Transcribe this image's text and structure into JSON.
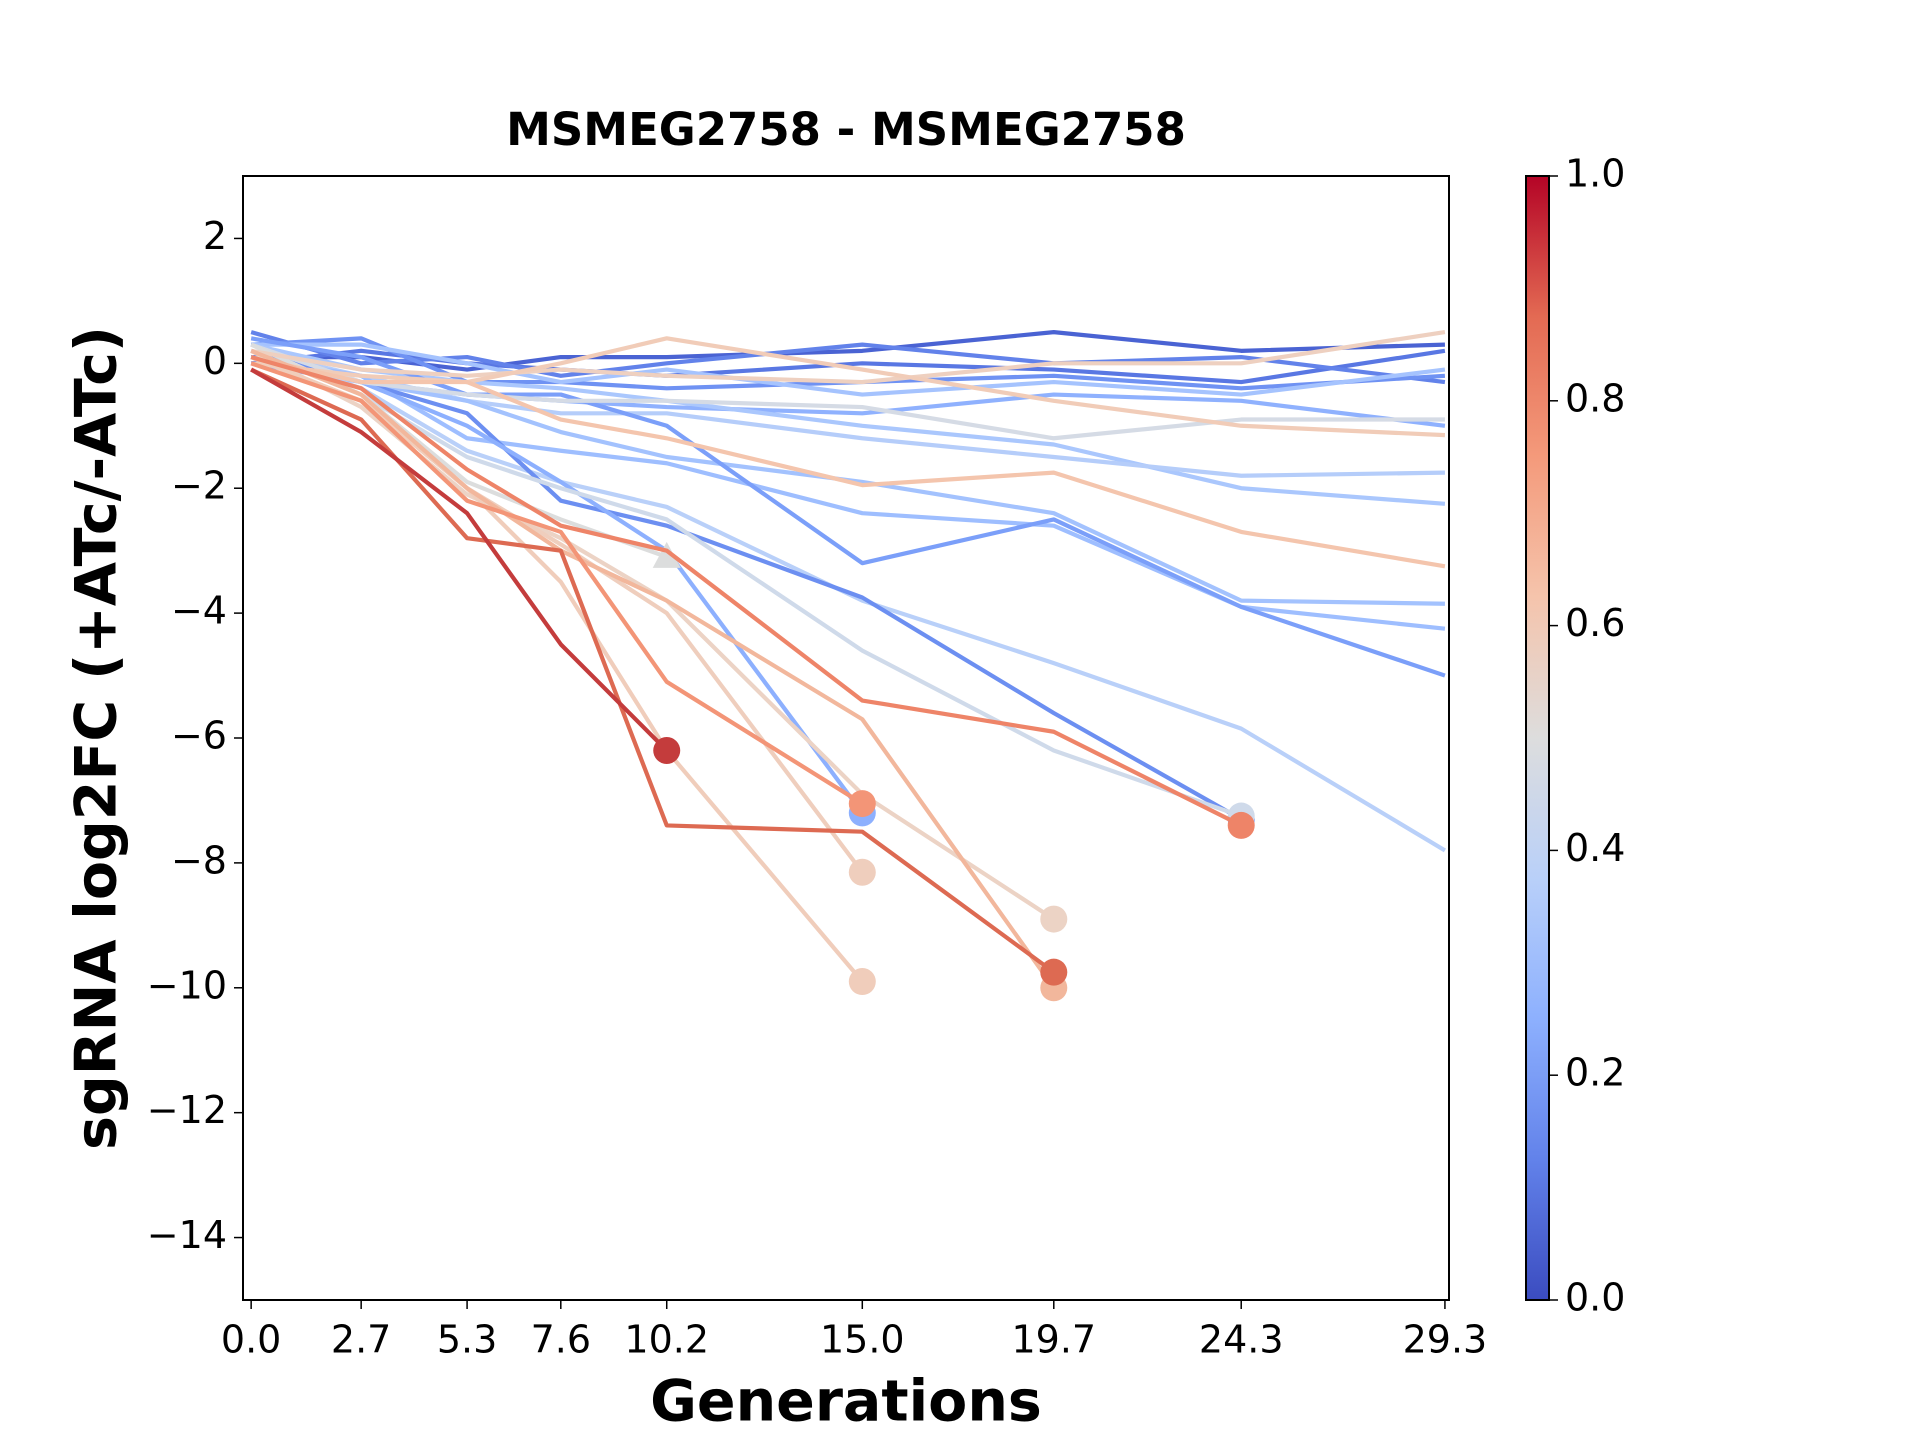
{
  "chart_data": {
    "type": "line",
    "title": "MSMEG2758 - MSMEG2758",
    "x_label": "Generations",
    "y_label": "sgRNA log2FC (+ATc/-ATc)",
    "x": [
      0,
      2.7,
      5.3,
      7.6,
      10.2,
      15,
      19.7,
      24.3,
      29.3
    ],
    "xlim": [
      -0.2,
      29.4
    ],
    "xticks": [
      {
        "value": 0,
        "label": "0.0"
      },
      2.7,
      5.3,
      7.6,
      10.2,
      {
        "value": 15,
        "label": "15.0"
      },
      19.7,
      24.3,
      29.3
    ],
    "ylim": [
      -15,
      3
    ],
    "yticks": [
      2,
      0,
      {
        "value": -2,
        "label": "−2"
      },
      {
        "value": -4,
        "label": "−4"
      },
      {
        "value": -6,
        "label": "−6"
      },
      {
        "value": -8,
        "label": "−8"
      },
      {
        "value": -10,
        "label": "−10"
      },
      {
        "value": -12,
        "label": "−12"
      },
      {
        "value": -14,
        "label": "−14"
      }
    ],
    "colorbar": {
      "cmap": "coolwarm",
      "lim": [
        0,
        1
      ],
      "ticks": [
        {
          "value": 0,
          "label": "0.0"
        },
        0.2,
        0.4,
        0.6,
        0.8,
        {
          "value": 1,
          "label": "1.0"
        }
      ]
    },
    "series": [
      {
        "color": "#4a63d3",
        "values": [
          0.1,
          0.1,
          -0.1,
          0.1,
          0.1,
          0.2,
          0.5,
          0.2,
          0.3
        ]
      },
      {
        "color": "#5977e3",
        "values": [
          0.0,
          0.2,
          0.0,
          -0.1,
          -0.2,
          0.0,
          -0.1,
          -0.3,
          0.2
        ]
      },
      {
        "color": "#6282ea",
        "values": [
          0.5,
          0.0,
          0.1,
          -0.2,
          0.0,
          0.3,
          0.0,
          0.1,
          -0.3
        ]
      },
      {
        "color": "#6f92f3",
        "values": [
          0.3,
          0.4,
          -0.3,
          -0.3,
          -0.4,
          -0.3,
          -0.2,
          -0.4,
          -0.2
        ]
      },
      {
        "color": "#a5c3fe",
        "values": [
          0.3,
          0.3,
          0.0,
          -0.3,
          -0.1,
          -0.5,
          -0.3,
          -0.5,
          -0.1
        ]
      },
      {
        "color": "#8fb1fe",
        "values": [
          0.0,
          -0.3,
          -0.5,
          -0.6,
          -0.7,
          -0.8,
          -0.5,
          -0.6,
          -1.0
        ]
      },
      {
        "color": "#aac7fd",
        "values": [
          0.3,
          -0.1,
          -0.3,
          -0.4,
          -0.6,
          -1.0,
          -1.3,
          -2.0,
          -2.25
        ]
      },
      {
        "color": "#b5cdfa",
        "values": [
          0.2,
          -0.2,
          -0.6,
          -0.8,
          -0.8,
          -1.2,
          -1.5,
          -1.8,
          -1.75
        ]
      },
      {
        "color": "#a3c2fe",
        "values": [
          0.1,
          -0.3,
          -0.6,
          -1.1,
          -1.5,
          -1.9,
          -2.4,
          -3.8,
          -3.85
        ]
      },
      {
        "color": "#9ebeff",
        "values": [
          0.1,
          -0.2,
          -1.2,
          -1.4,
          -1.6,
          -2.4,
          -2.6,
          -3.9,
          -4.25
        ]
      },
      {
        "color": "#7b9ff9",
        "values": [
          0.4,
          0.1,
          -0.5,
          -0.5,
          -1.0,
          -3.2,
          -2.5,
          -3.9,
          -5.0
        ]
      },
      {
        "color": "#b9d0f9",
        "values": [
          0.2,
          -0.4,
          -1.4,
          -1.9,
          -2.3,
          -3.8,
          -4.8,
          -5.85,
          -7.8
        ]
      },
      {
        "color": "#6c8ff1",
        "values": [
          0.2,
          -0.3,
          -0.8,
          -2.2,
          -2.6,
          -3.75,
          -5.6,
          -7.3,
          null
        ],
        "marker": "circle"
      },
      {
        "color": "#8db0fe",
        "values": [
          0.3,
          -0.3,
          -1.0,
          -1.9,
          -3.0,
          -7.2,
          null,
          null,
          null
        ],
        "marker": "circle"
      },
      {
        "color": "#d5dbe5",
        "values": [
          0.3,
          -0.3,
          -0.5,
          -0.6,
          -0.6,
          -0.7,
          -1.2,
          -0.9,
          -0.9
        ]
      },
      {
        "color": "#cfdaea",
        "values": [
          0.2,
          -0.5,
          -1.5,
          -2.0,
          -2.5,
          -4.6,
          -6.2,
          -7.25,
          null
        ],
        "marker": "circle"
      },
      {
        "color": "#dcdddd",
        "values": [
          0.3,
          -0.5,
          -1.9,
          -2.5,
          -3.1,
          null,
          null,
          null,
          null
        ],
        "marker": "triangle"
      },
      {
        "color": "#eed0c0",
        "values": [
          0.2,
          -0.1,
          -0.2,
          -0.1,
          -0.2,
          -0.3,
          0.0,
          0.0,
          0.5
        ]
      },
      {
        "color": "#f1ccb8",
        "values": [
          0.0,
          -0.2,
          -0.3,
          0.0,
          0.4,
          -0.1,
          -0.6,
          -1.0,
          -1.15
        ]
      },
      {
        "color": "#f4c5ad",
        "values": [
          0.1,
          -0.3,
          -0.3,
          -0.9,
          -1.2,
          -1.95,
          -1.75,
          -2.7,
          -3.25
        ]
      },
      {
        "color": "#ecd3c5",
        "values": [
          0.2,
          -0.7,
          -2.1,
          -2.8,
          -3.8,
          -6.9,
          -8.9,
          null,
          null
        ],
        "marker": "circle"
      },
      {
        "color": "#efcebd",
        "values": [
          0.1,
          -0.6,
          -2.0,
          -2.9,
          -4.0,
          -8.15,
          null,
          null,
          null
        ],
        "marker": "circle"
      },
      {
        "color": "#f0cdbb",
        "values": [
          0.1,
          -0.6,
          -2.0,
          -3.5,
          -6.2,
          -9.9,
          null,
          null,
          null
        ],
        "marker": "circle"
      },
      {
        "color": "#f2b79c",
        "values": [
          0.2,
          -0.5,
          -2.0,
          -3.0,
          -3.8,
          -5.7,
          -10.0,
          null,
          null
        ],
        "marker": "circle"
      },
      {
        "color": "#f39577",
        "values": [
          0.0,
          -0.6,
          -2.2,
          -2.7,
          -5.1,
          -7.05,
          null,
          null,
          null
        ],
        "marker": "circle"
      },
      {
        "color": "#ee8468",
        "values": [
          0.1,
          -0.4,
          -1.7,
          -2.6,
          -3.0,
          -5.4,
          -5.9,
          -7.4,
          null
        ],
        "marker": "circle"
      },
      {
        "color": "#dd6a52",
        "values": [
          -0.1,
          -0.9,
          -2.8,
          -3.0,
          -7.4,
          -7.5,
          -9.75,
          null,
          null
        ],
        "marker": "circle"
      },
      {
        "color": "#c43c3c",
        "values": [
          -0.1,
          -1.1,
          -2.4,
          -4.5,
          -6.2,
          null,
          null,
          null,
          null
        ],
        "marker": "circle"
      }
    ]
  }
}
